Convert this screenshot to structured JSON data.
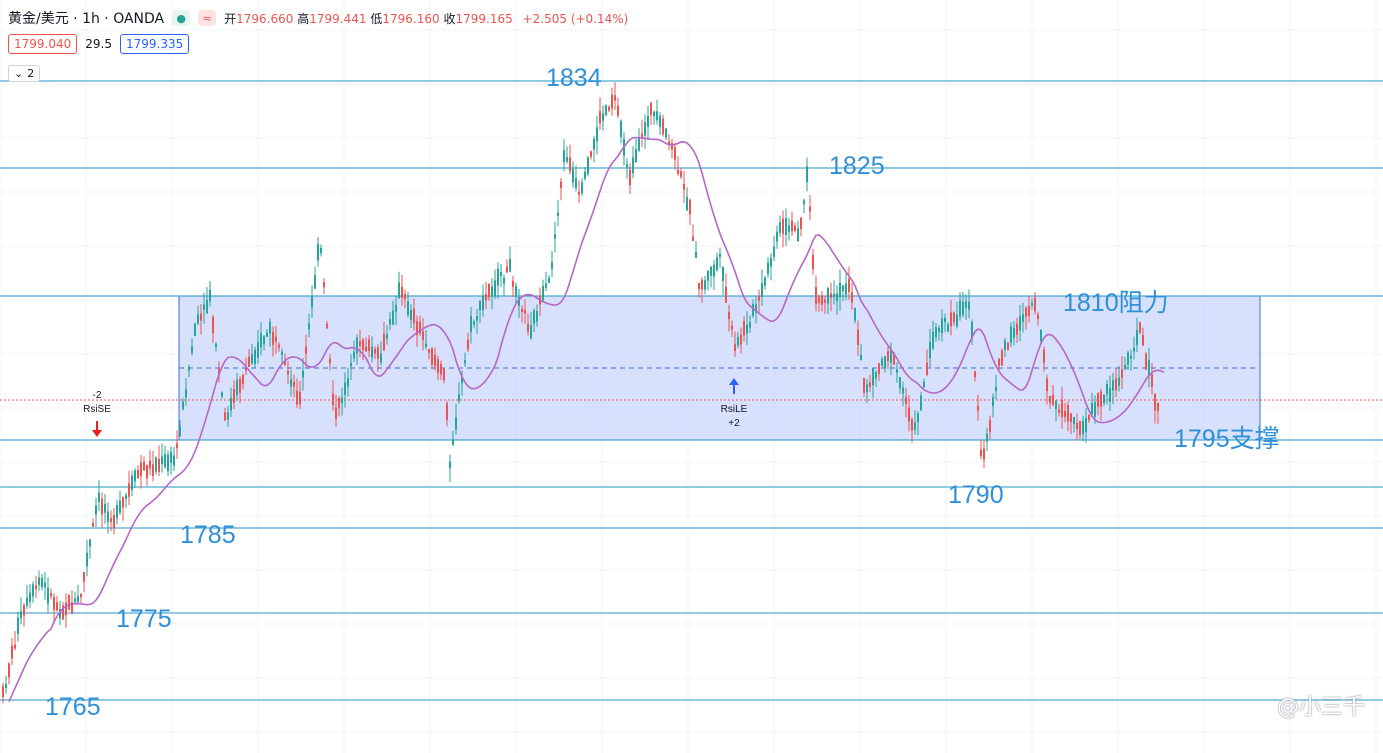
{
  "header": {
    "symbol": "黄金/美元 · 1h · OANDA",
    "open_label": "开",
    "open": "1796.660",
    "high_label": "高",
    "high": "1799.441",
    "low_label": "低",
    "low": "1796.160",
    "close_label": "收",
    "close": "1799.165",
    "change": "+2.505 (+0.14%)"
  },
  "quote": {
    "bid": "1799.040",
    "spread": "29.5",
    "ask": "1799.335"
  },
  "indicator_toggle": {
    "count": "2"
  },
  "annotations": {
    "level_1834": "1834",
    "level_1825": "1825",
    "level_1810": "1810阻力",
    "level_1795": "1795支撑",
    "level_1790": "1790",
    "level_1785": "1785",
    "level_1775": "1775",
    "level_1765": "1765"
  },
  "signals": {
    "short": {
      "qty": "-2",
      "name": "RsiSE"
    },
    "long": {
      "name": "RsiLE",
      "qty": "+2"
    }
  },
  "watermark": "@小三千",
  "colors": {
    "up": "#26a69a",
    "down": "#ef5350",
    "ma": "#b667c9",
    "level_line": "#2196c4",
    "zone_fill": "#c9d6fb",
    "zone_border": "#3d6ce0",
    "label": "#2f8fd8"
  }
}
